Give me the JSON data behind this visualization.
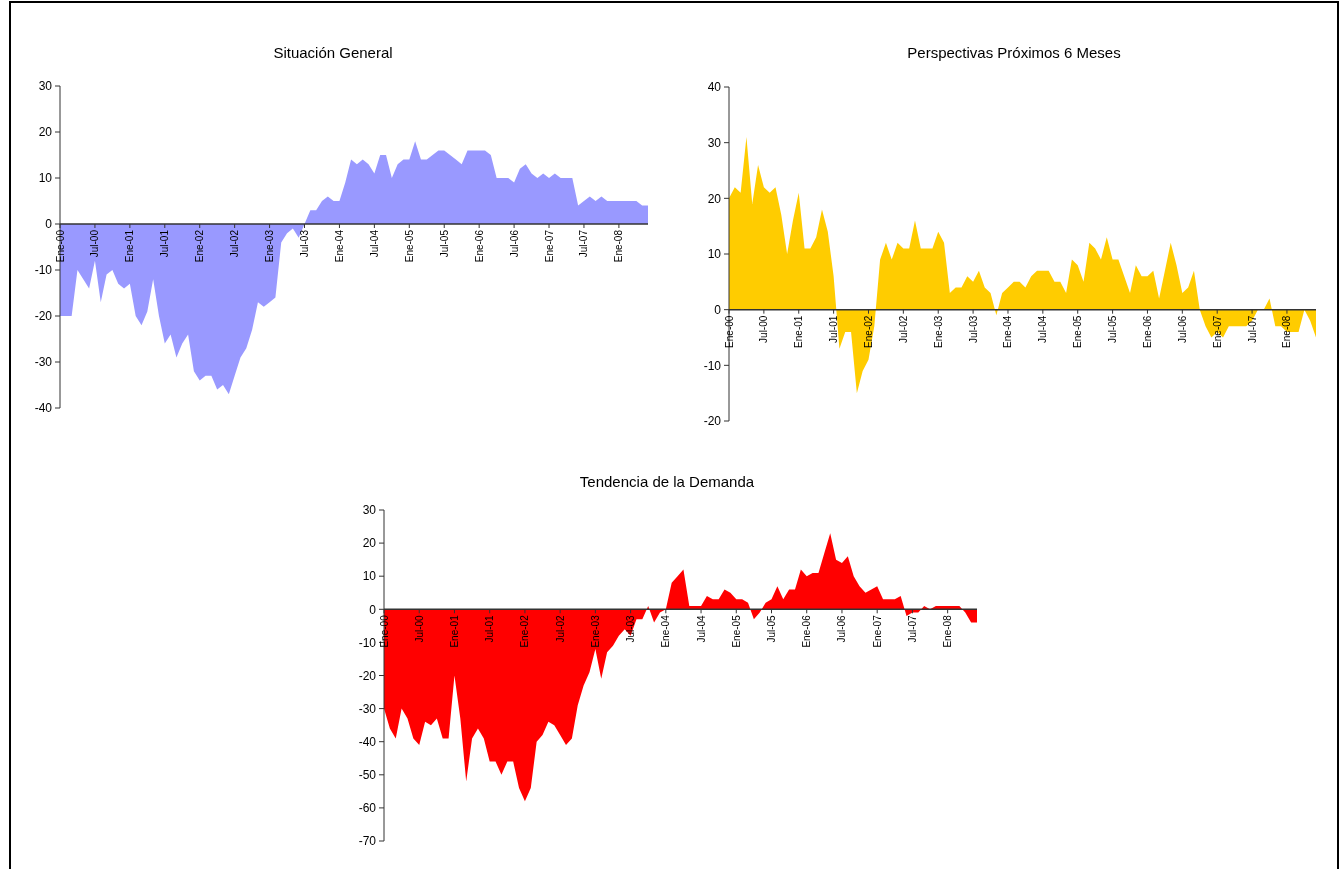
{
  "chart_data": [
    {
      "type": "area",
      "title": "Situación General",
      "categories": [
        "Ene-00",
        null,
        null,
        null,
        null,
        null,
        "Jul-00",
        null,
        null,
        null,
        null,
        null,
        "Ene-01",
        null,
        null,
        null,
        null,
        null,
        "Jul-01",
        null,
        null,
        null,
        null,
        null,
        "Ene-02",
        null,
        null,
        null,
        null,
        null,
        "Jul-02",
        null,
        null,
        null,
        null,
        null,
        "Ene-03",
        null,
        null,
        null,
        null,
        null,
        "Jul-03",
        null,
        null,
        null,
        null,
        null,
        "Ene-04",
        null,
        null,
        null,
        null,
        null,
        "Jul-04",
        null,
        null,
        null,
        null,
        null,
        "Ene-05",
        null,
        null,
        null,
        null,
        null,
        "Jul-05",
        null,
        null,
        null,
        null,
        null,
        "Ene-06",
        null,
        null,
        null,
        null,
        null,
        "Jul-06",
        null,
        null,
        null,
        null,
        null,
        "Ene-07",
        null,
        null,
        null,
        null,
        null,
        "Jul-07",
        null,
        null,
        null,
        null,
        null,
        "Ene-08",
        null,
        null,
        null,
        null,
        null
      ],
      "series": [
        {
          "color": "#9999ff",
          "values": [
            -20,
            -20,
            -20,
            -10,
            -12,
            -14,
            -8,
            -17,
            -11,
            -10,
            -13,
            -14,
            -13,
            -20,
            -22,
            -19,
            -12,
            -20,
            -26,
            -24,
            -29,
            -26,
            -24,
            -32,
            -34,
            -33,
            -33,
            -36,
            -35,
            -37,
            -33,
            -29,
            -27,
            -23,
            -17,
            -18,
            -17,
            -16,
            -4,
            -2,
            -1,
            -3,
            0,
            3,
            3,
            5,
            6,
            5,
            5,
            9,
            14,
            13,
            14,
            13,
            11,
            15,
            15,
            10,
            13,
            14,
            14,
            18,
            14,
            14,
            15,
            16,
            16,
            15,
            14,
            13,
            16,
            16,
            16,
            16,
            15,
            10,
            10,
            10,
            9,
            12,
            13,
            11,
            10,
            11,
            10,
            11,
            10,
            10,
            10,
            4,
            5,
            6,
            5,
            6,
            5,
            5,
            5,
            5,
            5,
            5,
            4,
            4
          ]
        }
      ],
      "ylim": [
        -40,
        30
      ],
      "yticks": [
        -40,
        -30,
        -20,
        -10,
        0,
        10,
        20,
        30
      ]
    },
    {
      "type": "area",
      "title": "Perspectivas Próximos 6 Meses",
      "categories": [
        "Ene-00",
        null,
        null,
        null,
        null,
        null,
        "Jul-00",
        null,
        null,
        null,
        null,
        null,
        "Ene-01",
        null,
        null,
        null,
        null,
        null,
        "Jul-01",
        null,
        null,
        null,
        null,
        null,
        "Ene-02",
        null,
        null,
        null,
        null,
        null,
        "Jul-02",
        null,
        null,
        null,
        null,
        null,
        "Ene-03",
        null,
        null,
        null,
        null,
        null,
        "Jul-03",
        null,
        null,
        null,
        null,
        null,
        "Ene-04",
        null,
        null,
        null,
        null,
        null,
        "Jul-04",
        null,
        null,
        null,
        null,
        null,
        "Ene-05",
        null,
        null,
        null,
        null,
        null,
        "Jul-05",
        null,
        null,
        null,
        null,
        null,
        "Ene-06",
        null,
        null,
        null,
        null,
        null,
        "Jul-06",
        null,
        null,
        null,
        null,
        null,
        "Ene-07",
        null,
        null,
        null,
        null,
        null,
        "Jul-07",
        null,
        null,
        null,
        null,
        null,
        "Ene-08",
        null,
        null,
        null,
        null,
        null
      ],
      "series": [
        {
          "color": "#ffcc00",
          "values": [
            20,
            22,
            21,
            31,
            19,
            26,
            22,
            21,
            22,
            17,
            10,
            16,
            21,
            11,
            11,
            13,
            18,
            14,
            6,
            -7,
            -4,
            -4,
            -15,
            -11,
            -9,
            -3,
            9,
            12,
            9,
            12,
            11,
            11,
            16,
            11,
            11,
            11,
            14,
            12,
            3,
            4,
            4,
            6,
            5,
            7,
            4,
            3,
            -1,
            3,
            4,
            5,
            5,
            4,
            6,
            7,
            7,
            7,
            5,
            5,
            3,
            9,
            8,
            5,
            12,
            11,
            9,
            13,
            9,
            9,
            6,
            3,
            8,
            6,
            6,
            7,
            2,
            7,
            12,
            8,
            3,
            4,
            7,
            0,
            -3,
            -5,
            -4,
            -5,
            -3,
            -3,
            -3,
            -3,
            -2,
            0,
            0,
            2,
            -3,
            -3,
            -4,
            -4,
            -4,
            0,
            -2,
            -5
          ]
        }
      ],
      "ylim": [
        -20,
        40
      ],
      "yticks": [
        -20,
        -10,
        0,
        10,
        20,
        30,
        40
      ]
    },
    {
      "type": "area",
      "title": "Tendencia de la Demanda",
      "categories": [
        "Ene-00",
        null,
        null,
        null,
        null,
        null,
        "Jul-00",
        null,
        null,
        null,
        null,
        null,
        "Ene-01",
        null,
        null,
        null,
        null,
        null,
        "Jul-01",
        null,
        null,
        null,
        null,
        null,
        "Ene-02",
        null,
        null,
        null,
        null,
        null,
        "Jul-02",
        null,
        null,
        null,
        null,
        null,
        "Ene-03",
        null,
        null,
        null,
        null,
        null,
        "Jul-03",
        null,
        null,
        null,
        null,
        null,
        "Ene-04",
        null,
        null,
        null,
        null,
        null,
        "Jul-04",
        null,
        null,
        null,
        null,
        null,
        "Ene-05",
        null,
        null,
        null,
        null,
        null,
        "Jul-05",
        null,
        null,
        null,
        null,
        null,
        "Ene-06",
        null,
        null,
        null,
        null,
        null,
        "Jul-06",
        null,
        null,
        null,
        null,
        null,
        "Ene-07",
        null,
        null,
        null,
        null,
        null,
        "Jul-07",
        null,
        null,
        null,
        null,
        null,
        "Ene-08",
        null,
        null,
        null,
        null,
        null
      ],
      "series": [
        {
          "color": "#ff0000",
          "values": [
            -30,
            -36,
            -39,
            -30,
            -33,
            -39,
            -41,
            -34,
            -35,
            -33,
            -39,
            -39,
            -20,
            -33,
            -52,
            -39,
            -36,
            -39,
            -46,
            -46,
            -50,
            -46,
            -46,
            -54,
            -58,
            -54,
            -40,
            -38,
            -34,
            -35,
            -38,
            -41,
            -39,
            -29,
            -23,
            -19,
            -12,
            -21,
            -13,
            -11,
            -8,
            -6,
            -8,
            -3,
            -3,
            1,
            -4,
            -1,
            0,
            8,
            10,
            12,
            1,
            1,
            1,
            4,
            3,
            3,
            6,
            5,
            3,
            3,
            2,
            -3,
            -1,
            2,
            3,
            7,
            3,
            6,
            6,
            12,
            10,
            11,
            11,
            17,
            23,
            15,
            14,
            16,
            10,
            7,
            5,
            6,
            7,
            3,
            3,
            3,
            4,
            -2,
            -1,
            -1,
            1,
            0,
            1,
            1,
            1,
            1,
            1,
            -1,
            -4,
            -4
          ]
        }
      ],
      "ylim": [
        -70,
        30
      ],
      "yticks": [
        -70,
        -60,
        -50,
        -40,
        -30,
        -20,
        -10,
        0,
        10,
        20,
        30
      ]
    }
  ]
}
